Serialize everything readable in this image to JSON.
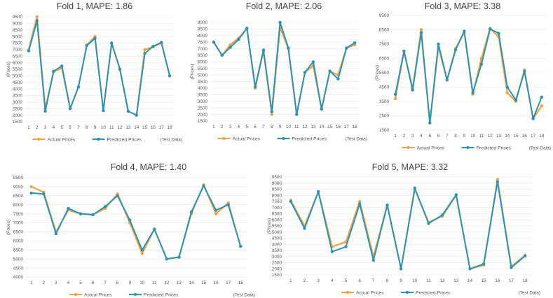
{
  "legend_labels": {
    "actual": "Actual Prices",
    "predicted": "Predicted Prices"
  },
  "colors": {
    "actual": "#F4A14A",
    "predicted": "#2E92B5",
    "grid": "#e3e3e3",
    "text": "#555555"
  },
  "chart_data": [
    {
      "type": "line",
      "title": "Fold 1, MAPE: 1.86",
      "xlabel": "(Test Data)",
      "ylabel": "(Prices)",
      "categories": [
        "1",
        "2",
        "3",
        "4",
        "5",
        "6",
        "7",
        "8",
        "9",
        "10",
        "11",
        "12",
        "13",
        "14",
        "15",
        "16",
        "17",
        "18"
      ],
      "ylim": [
        1500,
        9500
      ],
      "yticks": [
        1500,
        2000,
        2500,
        3000,
        3500,
        4000,
        4500,
        5000,
        5500,
        6000,
        6500,
        7000,
        7500,
        8000,
        8500,
        9000,
        9500
      ],
      "series": [
        {
          "name": "Actual Prices",
          "values": [
            7000,
            9500,
            2500,
            5300,
            5600,
            2500,
            4150,
            7350,
            8000,
            2350,
            7500,
            5500,
            2300,
            2000,
            7000,
            7200,
            7500,
            5000
          ]
        },
        {
          "name": "Predicted Prices",
          "values": [
            6900,
            9200,
            2300,
            5350,
            5750,
            2500,
            4150,
            7300,
            7850,
            2350,
            7500,
            5500,
            2300,
            2000,
            6700,
            7250,
            7550,
            5000
          ]
        }
      ]
    },
    {
      "type": "line",
      "title": "Fold 2, MAPE: 2.06",
      "xlabel": "(Test Data)",
      "ylabel": "(Prices)",
      "categories": [
        "1",
        "2",
        "3",
        "4",
        "5",
        "6",
        "7",
        "8",
        "9",
        "10",
        "11",
        "12",
        "13",
        "14",
        "15",
        "16",
        "17",
        "18"
      ],
      "ylim": [
        1500,
        9000
      ],
      "yticks": [
        1500,
        2000,
        2500,
        3000,
        3500,
        4000,
        4500,
        5000,
        5500,
        6000,
        6500,
        7000,
        7500,
        8000,
        8500,
        9000
      ],
      "series": [
        {
          "name": "Actual Prices",
          "values": [
            7500,
            6500,
            7300,
            7800,
            8550,
            4000,
            6800,
            2000,
            8600,
            7000,
            2000,
            5200,
            5700,
            2400,
            5300,
            5000,
            7050,
            7300
          ]
        },
        {
          "name": "Predicted Prices",
          "values": [
            7500,
            6500,
            7100,
            7700,
            8550,
            4100,
            6900,
            2200,
            9000,
            7050,
            2000,
            5200,
            6000,
            2400,
            5300,
            4700,
            7050,
            7450
          ]
        }
      ]
    },
    {
      "type": "line",
      "title": "Fold 3, MAPE: 3.38",
      "xlabel": "(Test Data)",
      "ylabel": "(Prices)",
      "categories": [
        "1",
        "2",
        "3",
        "4",
        "5",
        "6",
        "7",
        "8",
        "9",
        "10",
        "11",
        "12",
        "13",
        "14",
        "15",
        "16",
        "17",
        "18"
      ],
      "ylim": [
        1500,
        9500
      ],
      "yticks": [
        1500,
        2500,
        3500,
        4500,
        5500,
        6500,
        7500,
        8500,
        9500
      ],
      "series": [
        {
          "name": "Actual Prices",
          "values": [
            3700,
            7000,
            4400,
            8500,
            2000,
            7300,
            5000,
            7200,
            8300,
            4000,
            6500,
            8600,
            8000,
            4100,
            3500,
            5700,
            2300,
            3200
          ]
        },
        {
          "name": "Predicted Prices",
          "values": [
            4000,
            7000,
            4300,
            8300,
            2000,
            7500,
            5000,
            7100,
            8400,
            4100,
            6100,
            8550,
            8250,
            4500,
            3600,
            5600,
            2300,
            3800
          ]
        }
      ]
    },
    {
      "type": "line",
      "title": "Fold 4, MAPE: 1.40",
      "xlabel": "(Test Data)",
      "ylabel": "(Prices)",
      "categories": [
        "1",
        "2",
        "3",
        "4",
        "5",
        "6",
        "7",
        "8",
        "9",
        "10",
        "11",
        "12",
        "13",
        "14",
        "15",
        "16",
        "17",
        "18"
      ],
      "ylim": [
        4000,
        9500
      ],
      "yticks": [
        4000,
        4500,
        5000,
        5500,
        6000,
        6500,
        7000,
        7500,
        8000,
        8500,
        9000,
        9500
      ],
      "series": [
        {
          "name": "Actual Prices",
          "values": [
            9000,
            8700,
            6500,
            7700,
            7500,
            7450,
            7800,
            8600,
            7000,
            5300,
            6650,
            5000,
            5100,
            7500,
            9100,
            7500,
            8100,
            5700
          ]
        },
        {
          "name": "Predicted Prices",
          "values": [
            8650,
            8600,
            6400,
            7800,
            7500,
            7450,
            7900,
            8500,
            7150,
            5500,
            6650,
            5000,
            5100,
            7600,
            9050,
            7700,
            8000,
            5700
          ]
        }
      ]
    },
    {
      "type": "line",
      "title": "Fold 5, MAPE: 3.32",
      "xlabel": "(Test Data)",
      "ylabel": "(Prices)",
      "categories": [
        "1",
        "2",
        "3",
        "4",
        "5",
        "6",
        "7",
        "8",
        "9",
        "10",
        "11",
        "12",
        "13",
        "14",
        "15",
        "16",
        "17",
        "18"
      ],
      "ylim": [
        1500,
        9500
      ],
      "yticks": [
        1500,
        2000,
        2500,
        3000,
        3500,
        4000,
        4500,
        5000,
        5500,
        6000,
        6500,
        7000,
        7500,
        8000,
        8500,
        9000,
        9500
      ],
      "series": [
        {
          "name": "Actual Prices",
          "values": [
            7600,
            5500,
            8300,
            3800,
            4200,
            7500,
            3000,
            7200,
            2000,
            8500,
            5800,
            6300,
            8000,
            2000,
            2300,
            9300,
            2200,
            3100
          ]
        },
        {
          "name": "Predicted Prices",
          "values": [
            7500,
            5300,
            8300,
            3400,
            3800,
            7300,
            2700,
            7200,
            2000,
            8600,
            5700,
            6400,
            8050,
            2000,
            2400,
            9100,
            2100,
            3050
          ]
        }
      ]
    }
  ]
}
